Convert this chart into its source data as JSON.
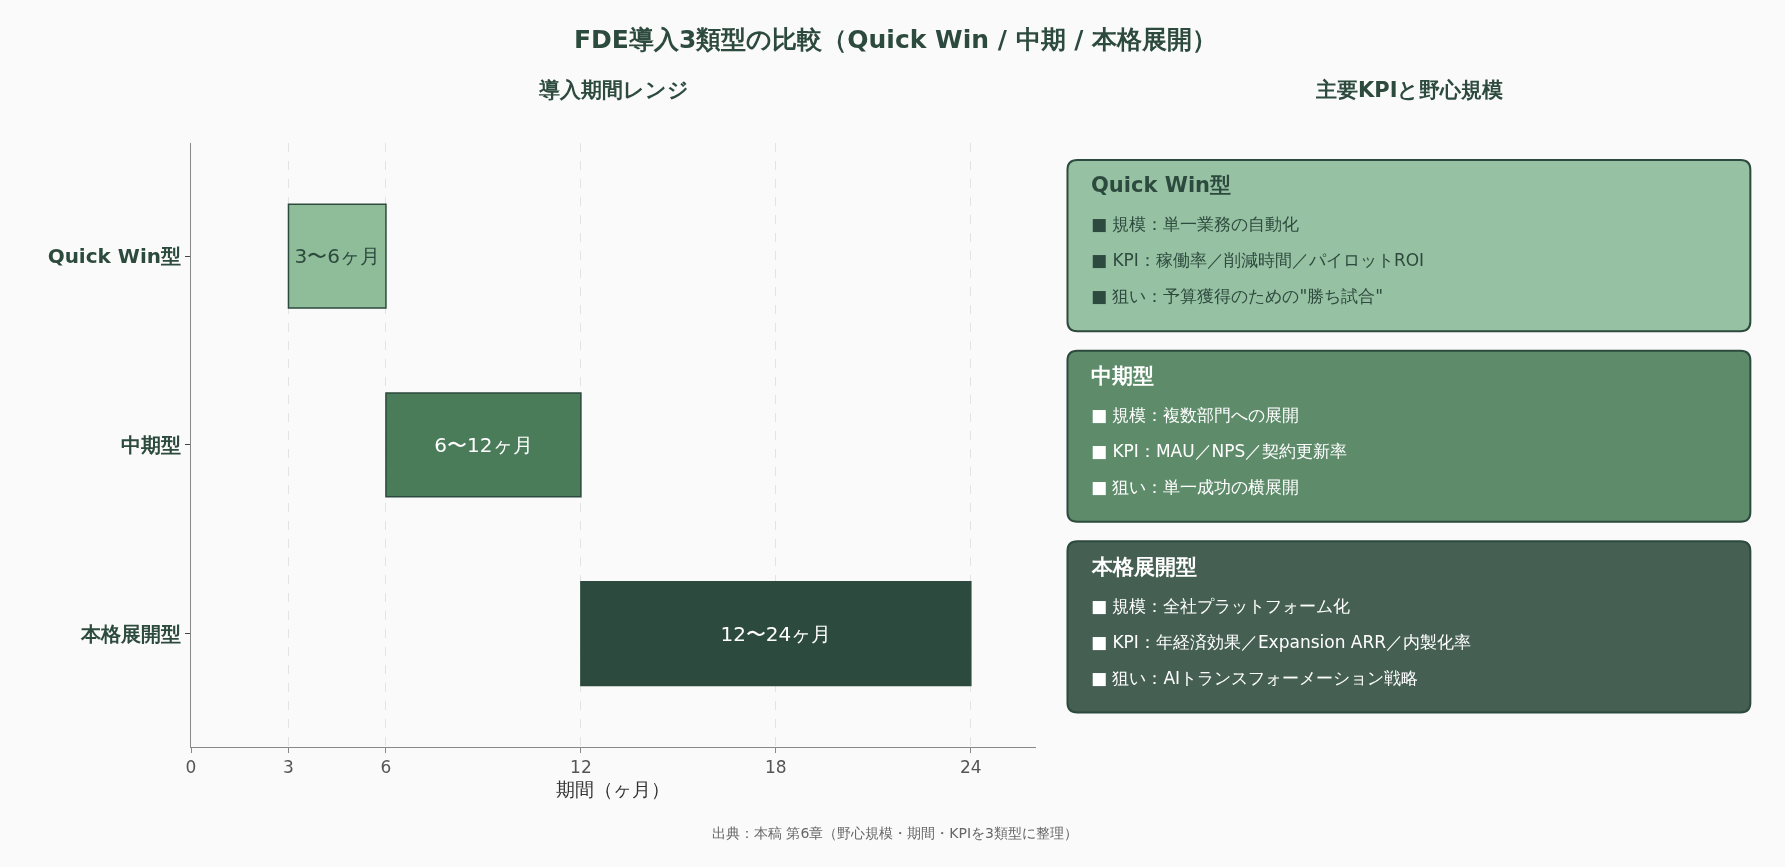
{
  "chart_data": [
    {
      "type": "bar",
      "orientation": "horizontal",
      "title": "FDE導入3類型の比較（Quick Win / 中期 / 本格展開）",
      "subtitle": "導入期間レンジ",
      "xlabel": "期間（ヶ月）",
      "categories": [
        "Quick Win型",
        "中期型",
        "本格展開型"
      ],
      "base": [
        3,
        6,
        12
      ],
      "values": [
        3,
        6,
        12
      ],
      "colors": [
        "#8fbc99",
        "#4a7c59",
        "#2d4a3e"
      ],
      "value_labels": [
        "3〜6ヶ月",
        "6〜12ヶ月",
        "12〜24ヶ月"
      ],
      "xlim": [
        0,
        26
      ],
      "xticks": [
        0,
        3,
        6,
        12,
        18,
        24
      ],
      "grid": "x",
      "legend": false,
      "annotations": [
        "出典：本稿 第6章（野心規模・期間・KPIを3類型に整理）"
      ]
    },
    {
      "type": "other",
      "title": "主要KPIと野心規模",
      "categories": [
        "Quick Win型",
        "中期型",
        "本格展開型"
      ],
      "colors": [
        "#97c1a3",
        "#5e8c6b",
        "#455f53"
      ],
      "annotations": [
        "■ 規模：単一業務の自動化",
        "■ KPI：稼働率／削減時間／パイロットROI",
        "■ 狙い：予算獲得のための\"勝ち試合\"",
        "■ 規模：複数部門への展開",
        "■ KPI：MAU／NPS／契約更新率",
        "■ 狙い：単一成功の横展開",
        "■ 規模：全社プラットフォーム化",
        "■ KPI：年経済効果／Expansion ARR／内製化率",
        "■ 狙い：AIトランスフォーメーション戦略"
      ]
    }
  ]
}
